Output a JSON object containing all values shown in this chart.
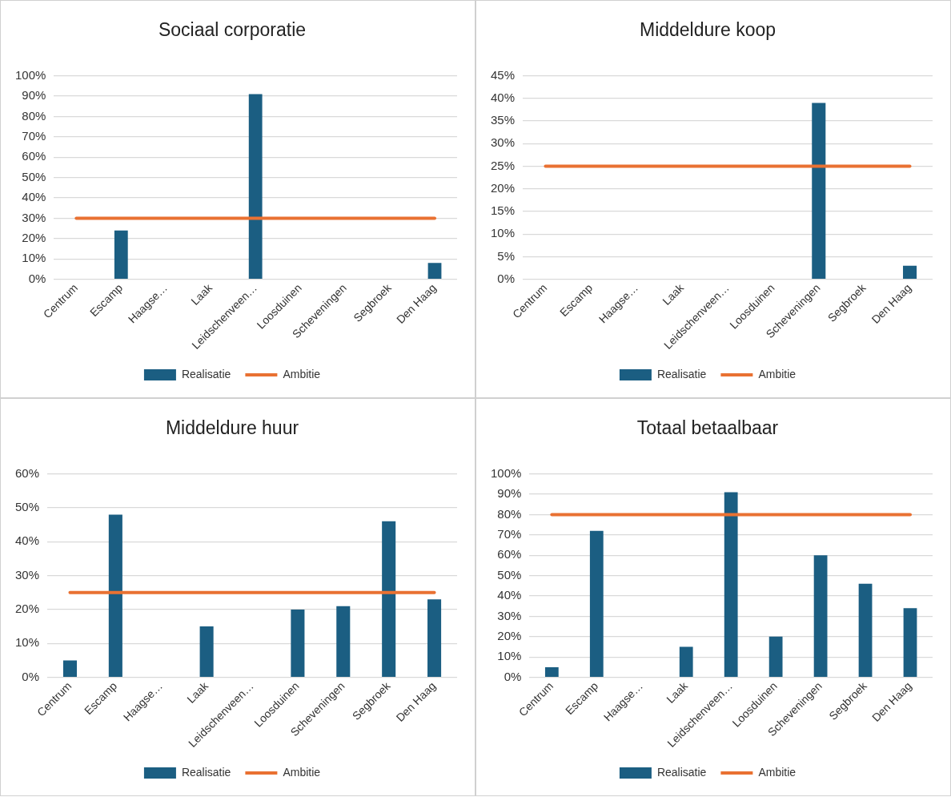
{
  "chart_data": [
    {
      "type": "bar",
      "title": "Sociaal corporatie",
      "categories": [
        "Centrum",
        "Escamp",
        "Haagse…",
        "Laak",
        "Leidschenveen…",
        "Loosduinen",
        "Scheveningen",
        "Segbroek",
        "Den Haag"
      ],
      "series": [
        {
          "name": "Realisatie",
          "color": "#1b5e82",
          "values": [
            null,
            24,
            null,
            null,
            91,
            null,
            null,
            null,
            8
          ]
        },
        {
          "name": "Ambitie",
          "type": "line",
          "color": "#e97132",
          "values": [
            30,
            30,
            30,
            30,
            30,
            30,
            30,
            30,
            30
          ]
        }
      ],
      "ylim": [
        0,
        100
      ],
      "yticks": [
        {
          "value": 0,
          "label": "0%"
        },
        {
          "value": 10,
          "label": "10%"
        },
        {
          "value": 20,
          "label": "20%"
        },
        {
          "value": 30,
          "label": "30%"
        },
        {
          "value": 40,
          "label": "40%"
        },
        {
          "value": 50,
          "label": "50%"
        },
        {
          "value": 60,
          "label": "60%"
        },
        {
          "value": 70,
          "label": "70%"
        },
        {
          "value": 80,
          "label": "80%"
        },
        {
          "value": 90,
          "label": "90%"
        },
        {
          "value": 100,
          "label": "100%"
        }
      ],
      "grid": "y",
      "legend": "bottom",
      "marker": "none"
    },
    {
      "type": "bar",
      "title": "Middeldure koop",
      "categories": [
        "Centrum",
        "Escamp",
        "Haagse…",
        "Laak",
        "Leidschenveen…",
        "Loosduinen",
        "Scheveningen",
        "Segbroek",
        "Den Haag"
      ],
      "series": [
        {
          "name": "Realisatie",
          "color": "#1b5e82",
          "values": [
            null,
            null,
            null,
            null,
            null,
            null,
            39,
            null,
            3
          ]
        },
        {
          "name": "Ambitie",
          "type": "line",
          "color": "#e97132",
          "values": [
            25,
            25,
            25,
            25,
            25,
            25,
            25,
            25,
            25
          ]
        }
      ],
      "ylim": [
        0,
        45
      ],
      "yticks": [
        {
          "value": 0,
          "label": "0%"
        },
        {
          "value": 5,
          "label": "5%"
        },
        {
          "value": 10,
          "label": "10%"
        },
        {
          "value": 15,
          "label": "15%"
        },
        {
          "value": 20,
          "label": "20%"
        },
        {
          "value": 25,
          "label": "25%"
        },
        {
          "value": 30,
          "label": "30%"
        },
        {
          "value": 35,
          "label": "35%"
        },
        {
          "value": 40,
          "label": "40%"
        },
        {
          "value": 45,
          "label": "45%"
        }
      ],
      "grid": "y",
      "legend": "bottom",
      "marker": "none"
    },
    {
      "type": "bar",
      "title": "Middeldure huur",
      "categories": [
        "Centrum",
        "Escamp",
        "Haagse…",
        "Laak",
        "Leidschenveen…",
        "Loosduinen",
        "Scheveningen",
        "Segbroek",
        "Den Haag"
      ],
      "series": [
        {
          "name": "Realisatie",
          "color": "#1b5e82",
          "values": [
            5,
            48,
            null,
            15,
            null,
            20,
            21,
            46,
            23
          ]
        },
        {
          "name": "Ambitie",
          "type": "line",
          "color": "#e97132",
          "values": [
            25,
            25,
            25,
            25,
            25,
            25,
            25,
            25,
            25
          ]
        }
      ],
      "ylim": [
        0,
        60
      ],
      "yticks": [
        {
          "value": 0,
          "label": "0%"
        },
        {
          "value": 10,
          "label": "10%"
        },
        {
          "value": 20,
          "label": "20%"
        },
        {
          "value": 30,
          "label": "30%"
        },
        {
          "value": 40,
          "label": "40%"
        },
        {
          "value": 50,
          "label": "50%"
        },
        {
          "value": 60,
          "label": "60%"
        }
      ],
      "grid": "y",
      "legend": "bottom",
      "marker": "none"
    },
    {
      "type": "bar",
      "title": "Totaal betaalbaar",
      "categories": [
        "Centrum",
        "Escamp",
        "Haagse…",
        "Laak",
        "Leidschenveen…",
        "Loosduinen",
        "Scheveningen",
        "Segbroek",
        "Den Haag"
      ],
      "series": [
        {
          "name": "Realisatie",
          "color": "#1b5e82",
          "values": [
            5,
            72,
            null,
            15,
            91,
            20,
            60,
            46,
            34
          ]
        },
        {
          "name": "Ambitie",
          "type": "line",
          "color": "#e97132",
          "values": [
            80,
            80,
            80,
            80,
            80,
            80,
            80,
            80,
            80
          ]
        }
      ],
      "ylim": [
        0,
        100
      ],
      "yticks": [
        {
          "value": 0,
          "label": "0%"
        },
        {
          "value": 10,
          "label": "10%"
        },
        {
          "value": 20,
          "label": "20%"
        },
        {
          "value": 30,
          "label": "30%"
        },
        {
          "value": 40,
          "label": "40%"
        },
        {
          "value": 50,
          "label": "50%"
        },
        {
          "value": 60,
          "label": "60%"
        },
        {
          "value": 70,
          "label": "70%"
        },
        {
          "value": 80,
          "label": "80%"
        },
        {
          "value": 90,
          "label": "90%"
        },
        {
          "value": 100,
          "label": "100%"
        }
      ],
      "grid": "y",
      "legend": "bottom",
      "marker": "none"
    }
  ]
}
